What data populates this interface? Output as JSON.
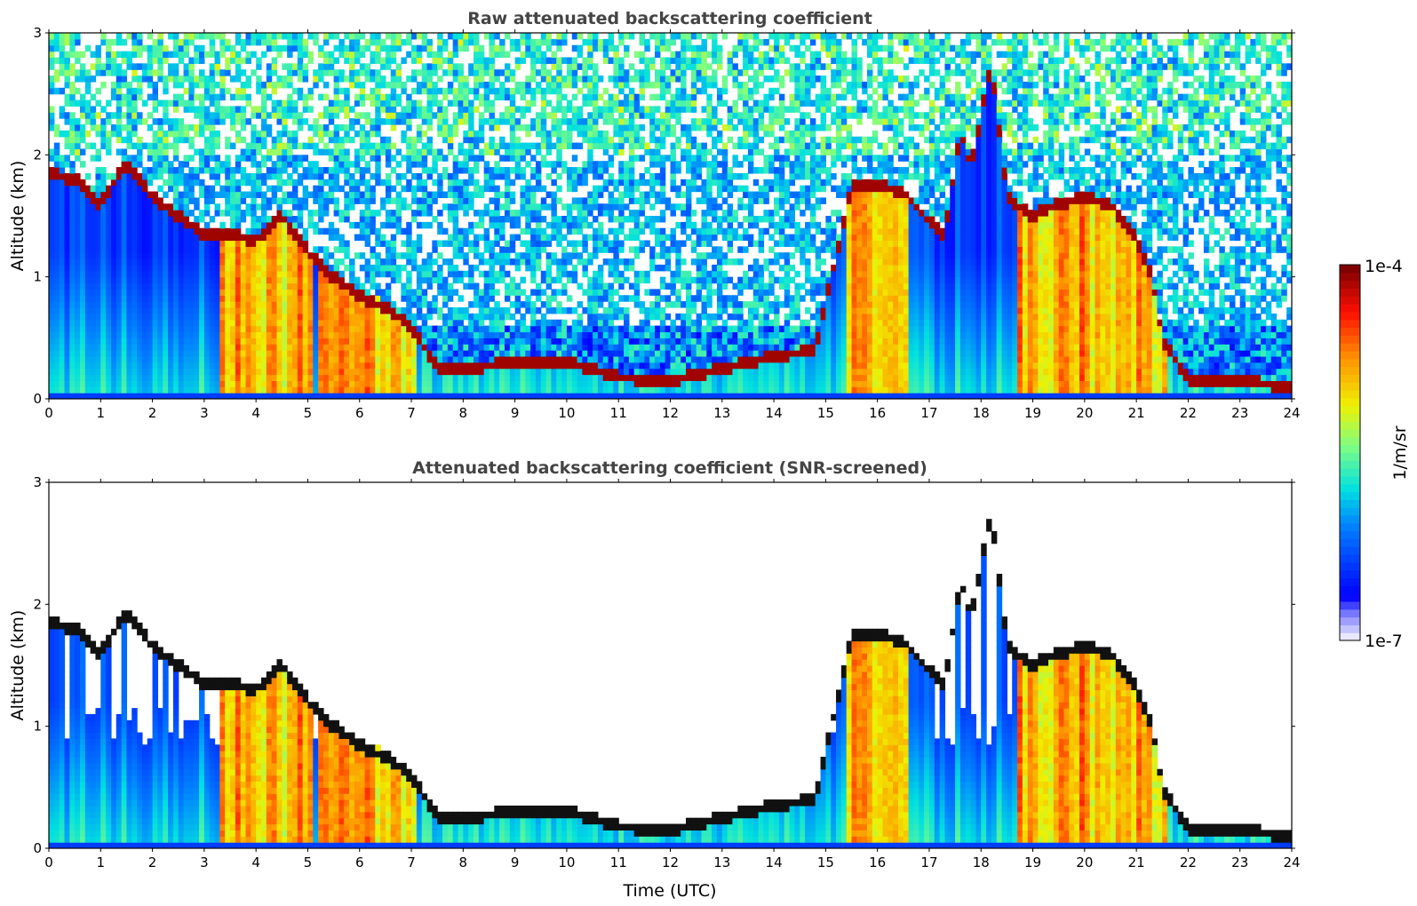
{
  "chart_data": [
    {
      "type": "heatmap",
      "title": "Raw attenuated backscattering coefficient",
      "xlabel": "",
      "ylabel": "Altitude (km)",
      "xlim": [
        0,
        24
      ],
      "ylim": [
        0,
        3
      ],
      "xticks": [
        "0",
        "1",
        "2",
        "3",
        "4",
        "5",
        "6",
        "7",
        "8",
        "9",
        "10",
        "11",
        "12",
        "13",
        "14",
        "15",
        "16",
        "17",
        "18",
        "19",
        "20",
        "21",
        "22",
        "23",
        "24"
      ],
      "yticks": [
        "0",
        "1",
        "2",
        "3"
      ],
      "screened": false
    },
    {
      "type": "heatmap",
      "title": "Attenuated backscattering coefficient (SNR-screened)",
      "xlabel": "Time (UTC)",
      "ylabel": "Altitude (km)",
      "xlim": [
        0,
        24
      ],
      "ylim": [
        0,
        3
      ],
      "xticks": [
        "0",
        "1",
        "2",
        "3",
        "4",
        "5",
        "6",
        "7",
        "8",
        "9",
        "10",
        "11",
        "12",
        "13",
        "14",
        "15",
        "16",
        "17",
        "18",
        "19",
        "20",
        "21",
        "22",
        "23",
        "24"
      ],
      "yticks": [
        "0",
        "1",
        "2",
        "3"
      ],
      "screened": true
    }
  ],
  "colorbar": {
    "label": "1/m/sr",
    "min_label": "1e-7",
    "max_label": "1e-4",
    "colormap": "jet",
    "scale": "log"
  },
  "features": {
    "cloud_base_km": [
      [
        0,
        1.85
      ],
      [
        0.5,
        1.8
      ],
      [
        1,
        1.6
      ],
      [
        1.5,
        1.95
      ],
      [
        2,
        1.65
      ],
      [
        2.5,
        1.5
      ],
      [
        3,
        1.35
      ],
      [
        3.5,
        1.35
      ],
      [
        4,
        1.3
      ],
      [
        4.5,
        1.5
      ],
      [
        5,
        1.2
      ],
      [
        5.5,
        1.0
      ],
      [
        6,
        0.85
      ],
      [
        6.5,
        0.75
      ],
      [
        7,
        0.6
      ],
      [
        7.5,
        0.25
      ],
      [
        8,
        0.25
      ],
      [
        9,
        0.3
      ],
      [
        10,
        0.3
      ],
      [
        11,
        0.18
      ],
      [
        12,
        0.15
      ],
      [
        13,
        0.25
      ],
      [
        14,
        0.35
      ],
      [
        14.8,
        0.4
      ],
      [
        15.5,
        1.75
      ],
      [
        16,
        1.75
      ],
      [
        16.5,
        1.7
      ],
      [
        17,
        1.45
      ],
      [
        17.3,
        1.35
      ],
      [
        17.6,
        2.2
      ],
      [
        17.8,
        1.9
      ],
      [
        18.2,
        2.75
      ],
      [
        18.5,
        1.65
      ],
      [
        19,
        1.5
      ],
      [
        19.5,
        1.6
      ],
      [
        20,
        1.65
      ],
      [
        20.5,
        1.6
      ],
      [
        21,
        1.3
      ],
      [
        21.3,
        1.0
      ],
      [
        21.5,
        0.5
      ],
      [
        22,
        0.15
      ],
      [
        23,
        0.15
      ],
      [
        24,
        0.1
      ]
    ],
    "dense_aerosol_segments_h": [
      [
        3.3,
        4.9
      ],
      [
        4.3,
        5.1
      ],
      [
        5.2,
        7.1
      ],
      [
        15.4,
        16.6
      ],
      [
        18.7,
        21.6
      ]
    ],
    "lowering_profiles": []
  }
}
